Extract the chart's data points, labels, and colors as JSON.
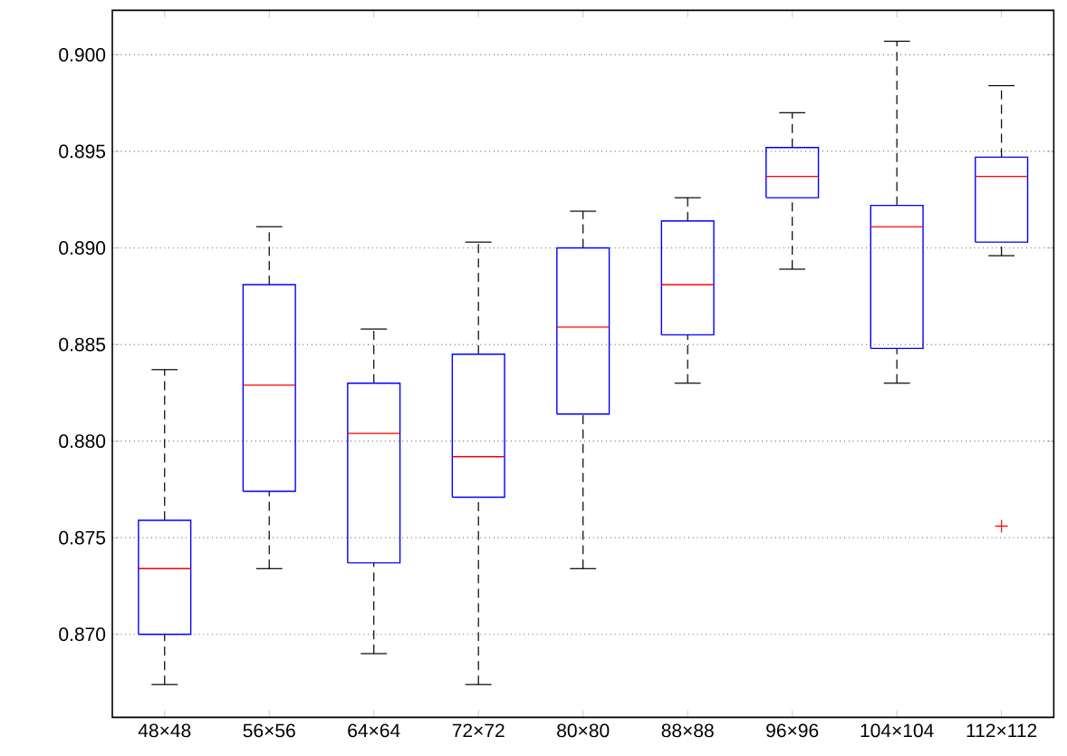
{
  "chart_data": {
    "type": "box",
    "categories": [
      "48×48",
      "56×56",
      "64×64",
      "72×72",
      "80×80",
      "88×88",
      "96×96",
      "104×104",
      "112×112"
    ],
    "ylim": [
      0.8657,
      0.9023
    ],
    "yticks": [
      {
        "value": 0.87,
        "label": "0.870"
      },
      {
        "value": 0.875,
        "label": "0.875"
      },
      {
        "value": 0.88,
        "label": "0.880"
      },
      {
        "value": 0.885,
        "label": "0.885"
      },
      {
        "value": 0.89,
        "label": "0.890"
      },
      {
        "value": 0.895,
        "label": "0.895"
      },
      {
        "value": 0.9,
        "label": "0.900"
      }
    ],
    "grid": "y",
    "series": [
      {
        "color": "#0000ff",
        "boxes": [
          {
            "low": 0.8674,
            "q1": 0.87,
            "median": 0.8734,
            "q3": 0.8759,
            "high": 0.8837
          },
          {
            "low": 0.8734,
            "q1": 0.8774,
            "median": 0.8829,
            "q3": 0.8881,
            "high": 0.8911
          },
          {
            "low": 0.869,
            "q1": 0.8737,
            "median": 0.8804,
            "q3": 0.883,
            "high": 0.8858
          },
          {
            "low": 0.8674,
            "q1": 0.8771,
            "median": 0.8792,
            "q3": 0.8845,
            "high": 0.8903
          },
          {
            "low": 0.8734,
            "q1": 0.8814,
            "median": 0.8859,
            "q3": 0.89,
            "high": 0.8919
          },
          {
            "low": 0.883,
            "q1": 0.8855,
            "median": 0.8881,
            "q3": 0.8914,
            "high": 0.8926
          },
          {
            "low": 0.8889,
            "q1": 0.8926,
            "median": 0.8937,
            "q3": 0.8952,
            "high": 0.897
          },
          {
            "low": 0.883,
            "q1": 0.8848,
            "median": 0.8911,
            "q3": 0.8922,
            "high": 0.9007
          },
          {
            "low": 0.8896,
            "q1": 0.8903,
            "median": 0.8937,
            "q3": 0.8947,
            "high": 0.8984,
            "outliers": [
              0.8756
            ]
          }
        ]
      }
    ]
  }
}
